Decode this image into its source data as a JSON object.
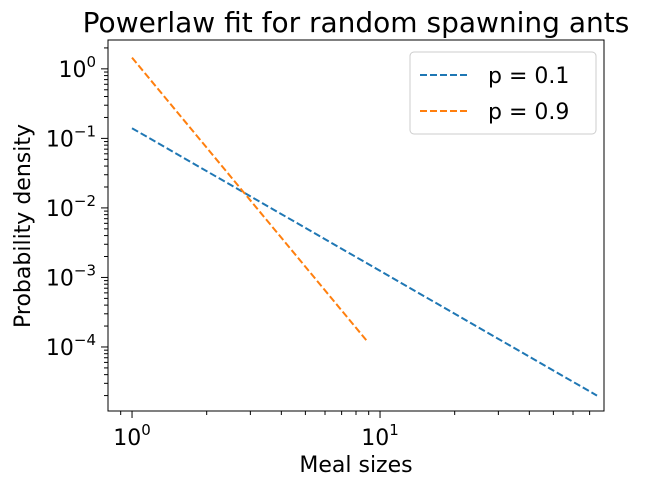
{
  "chart_data": {
    "type": "line",
    "title": "Powerlaw fit for random spawning ants",
    "xlabel": "Meal sizes",
    "ylabel": "Probability density",
    "xscale": "log",
    "yscale": "log",
    "xlim": [
      0.8,
      80
    ],
    "ylim": [
      1.2e-05,
      2.6
    ],
    "xticks": [
      {
        "value": 1,
        "base": "10",
        "exp": "0"
      },
      {
        "value": 10,
        "base": "10",
        "exp": "1"
      }
    ],
    "yticks": [
      {
        "value": 0.0001,
        "base": "10",
        "exp": "−4"
      },
      {
        "value": 0.001,
        "base": "10",
        "exp": "−3"
      },
      {
        "value": 0.01,
        "base": "10",
        "exp": "−2"
      },
      {
        "value": 0.1,
        "base": "10",
        "exp": "−1"
      },
      {
        "value": 1,
        "base": "10",
        "exp": "0"
      }
    ],
    "grid": false,
    "legend_position": "top-right",
    "series": [
      {
        "name": "p = 0.1",
        "color": "#1f77b4",
        "style": "dashed",
        "x": [
          1,
          75
        ],
        "y": [
          0.14,
          2e-05
        ]
      },
      {
        "name": "p = 0.9",
        "color": "#ff7f0e",
        "style": "dashed",
        "x": [
          1,
          8.8
        ],
        "y": [
          1.45,
          0.000125
        ]
      }
    ]
  }
}
